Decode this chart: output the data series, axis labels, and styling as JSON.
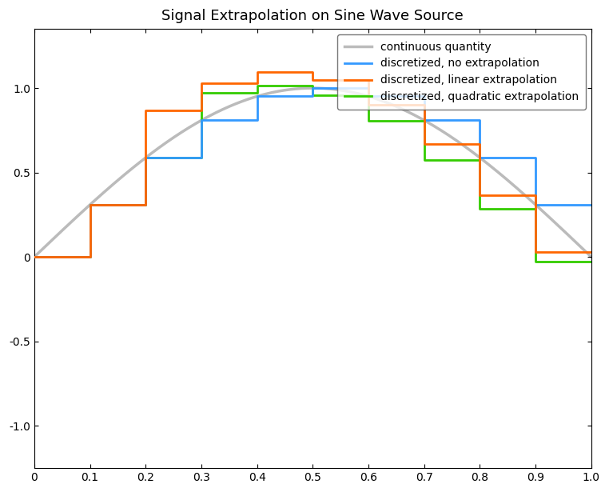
{
  "title": "Signal Extrapolation on Sine Wave Source",
  "xlim": [
    0,
    1
  ],
  "ylim": [
    -1.25,
    1.35
  ],
  "xticks": [
    0,
    0.1,
    0.2,
    0.3,
    0.4,
    0.5,
    0.6,
    0.7,
    0.8,
    0.9,
    1.0
  ],
  "yticks": [
    -1.0,
    -0.5,
    0.0,
    0.5,
    1.0
  ],
  "continuous_color": "#BBBBBB",
  "blue_color": "#3399FF",
  "orange_color": "#FF6600",
  "green_color": "#33CC00",
  "legend_labels": [
    "continuous quantity",
    "discretized, no extrapolation",
    "discretized, linear extrapolation",
    "discretized, quadratic extrapolation"
  ],
  "dt": 0.1,
  "n_steps": 10
}
